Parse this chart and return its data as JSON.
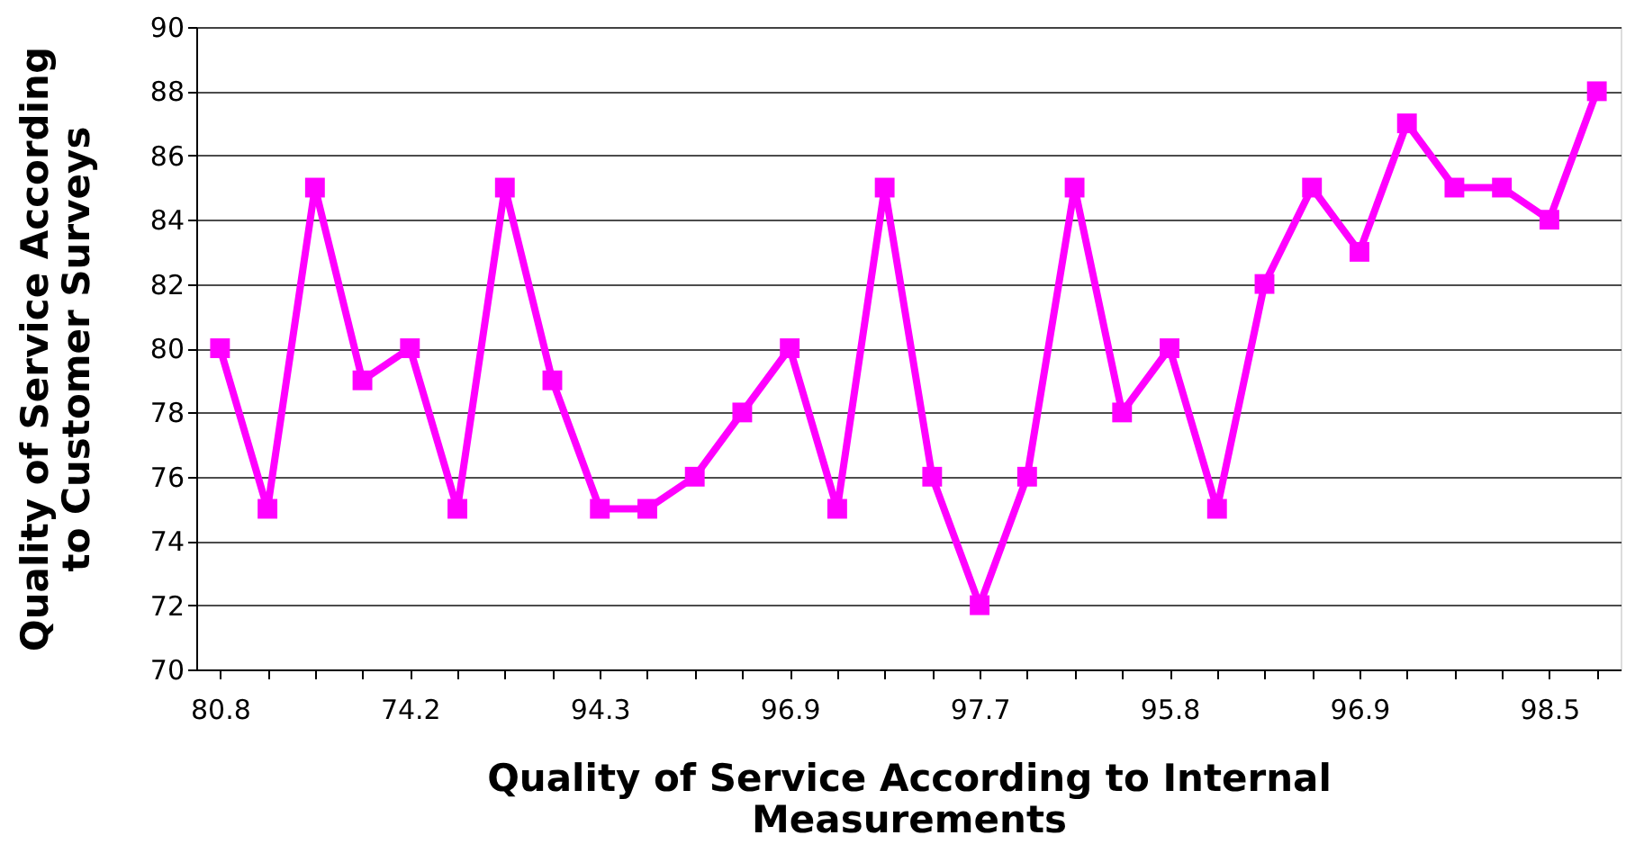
{
  "chart_data": {
    "type": "line",
    "xlabel": "Quality of Service According to Internal Measurements",
    "ylabel": "Quality of Service According to Customer Surveys",
    "categories": [
      "80.8",
      null,
      null,
      null,
      "74.2",
      null,
      null,
      null,
      "94.3",
      null,
      null,
      null,
      "96.9",
      null,
      null,
      null,
      "97.7",
      null,
      null,
      null,
      "95.8",
      null,
      null,
      null,
      "96.9",
      null,
      null,
      null,
      "98.5",
      null
    ],
    "series": [
      {
        "color": "#ff00ff",
        "values": [
          80,
          75,
          85,
          79,
          80,
          75,
          85,
          79,
          75,
          75,
          76,
          78,
          80,
          75,
          85,
          76,
          72,
          76,
          85,
          78,
          80,
          75,
          82,
          85,
          83,
          87,
          85,
          85,
          84,
          88
        ]
      }
    ],
    "ylim": [
      70,
      90
    ],
    "yticks": [
      70,
      72,
      74,
      76,
      78,
      80,
      82,
      84,
      86,
      88,
      90
    ],
    "grid": "y",
    "marker": "square",
    "line_style": "solid",
    "legend": false
  }
}
